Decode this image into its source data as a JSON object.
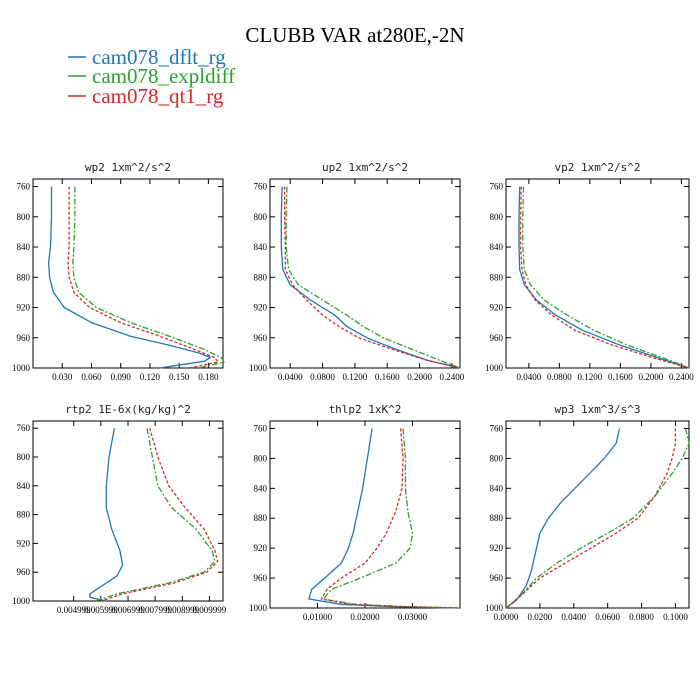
{
  "title": "CLUBB VAR at280E,-2N",
  "legend": [
    {
      "label": "cam078_dflt_rg",
      "color": "#1f77b4",
      "dash": ""
    },
    {
      "label": "cam078_expldiff",
      "color": "#2ca02c",
      "dash": "6,2,2,2"
    },
    {
      "label": "cam078_qt1_rg",
      "color": "#d62728",
      "dash": "3,2"
    }
  ],
  "chart_data": [
    {
      "type": "line",
      "title": "wp2   1xm^2/s^2",
      "xlim": [
        0.0,
        0.195
      ],
      "ylim": [
        1000,
        750
      ],
      "y_ticks": [
        760,
        800,
        840,
        880,
        920,
        960,
        1000
      ],
      "x_ticks": [
        0.03,
        0.06,
        0.09,
        0.12,
        0.15,
        0.18
      ],
      "x_tick_labels": [
        "0.030",
        "0.060",
        "0.090",
        "0.120",
        "0.150",
        "0.180"
      ],
      "series": [
        {
          "name": "cam078_dflt_rg",
          "color": "#1f77b4",
          "dash": "",
          "x": [
            0.019,
            0.019,
            0.018,
            0.016,
            0.017,
            0.021,
            0.032,
            0.06,
            0.1,
            0.14,
            0.17,
            0.182,
            0.176,
            0.13
          ],
          "y": [
            760,
            800,
            840,
            860,
            880,
            900,
            920,
            940,
            958,
            970,
            980,
            986,
            991,
            1000
          ]
        },
        {
          "name": "cam078_expldiff",
          "color": "#2ca02c",
          "dash": "6,2,2,2",
          "x": [
            0.043,
            0.043,
            0.042,
            0.041,
            0.042,
            0.047,
            0.065,
            0.1,
            0.14,
            0.175,
            0.193,
            0.196,
            0.17
          ],
          "y": [
            760,
            800,
            840,
            860,
            880,
            900,
            920,
            940,
            958,
            975,
            986,
            992,
            1000
          ]
        },
        {
          "name": "cam078_qt1_rg",
          "color": "#d62728",
          "dash": "3,2",
          "x": [
            0.037,
            0.037,
            0.037,
            0.036,
            0.037,
            0.042,
            0.058,
            0.09,
            0.13,
            0.165,
            0.186,
            0.19,
            0.16
          ],
          "y": [
            760,
            800,
            840,
            860,
            880,
            900,
            920,
            940,
            958,
            975,
            986,
            992,
            1000
          ]
        }
      ]
    },
    {
      "type": "line",
      "title": "up2   1xm^2/s^2",
      "xlim": [
        0.015,
        0.25
      ],
      "ylim": [
        1000,
        750
      ],
      "y_ticks": [
        760,
        800,
        840,
        880,
        920,
        960,
        1000
      ],
      "x_ticks": [
        0.04,
        0.08,
        0.12,
        0.16,
        0.2,
        0.24
      ],
      "x_tick_labels": [
        "0.0400",
        "0.0800",
        "0.1200",
        "0.1600",
        "0.2000",
        "0.2400"
      ],
      "series": [
        {
          "name": "cam078_dflt_rg",
          "color": "#1f77b4",
          "dash": "",
          "x": [
            0.03,
            0.029,
            0.029,
            0.031,
            0.04,
            0.065,
            0.095,
            0.11,
            0.135,
            0.17,
            0.21,
            0.25
          ],
          "y": [
            760,
            800,
            840,
            870,
            890,
            910,
            930,
            945,
            960,
            975,
            990,
            1000
          ]
        },
        {
          "name": "cam078_expldiff",
          "color": "#2ca02c",
          "dash": "6,2,2,2",
          "x": [
            0.036,
            0.035,
            0.035,
            0.038,
            0.05,
            0.08,
            0.11,
            0.13,
            0.155,
            0.19,
            0.225,
            0.25
          ],
          "y": [
            760,
            800,
            840,
            870,
            890,
            910,
            930,
            945,
            960,
            975,
            990,
            1000
          ]
        },
        {
          "name": "cam078_qt1_rg",
          "color": "#d62728",
          "dash": "3,2",
          "x": [
            0.033,
            0.033,
            0.034,
            0.034,
            0.043,
            0.06,
            0.08,
            0.1,
            0.125,
            0.165,
            0.21,
            0.25
          ],
          "y": [
            760,
            800,
            840,
            870,
            890,
            910,
            930,
            945,
            960,
            975,
            990,
            1000
          ]
        }
      ]
    },
    {
      "type": "line",
      "title": "vp2   1xm^2/s^2",
      "xlim": [
        0.01,
        0.25
      ],
      "ylim": [
        1000,
        750
      ],
      "y_ticks": [
        760,
        800,
        840,
        880,
        920,
        960,
        1000
      ],
      "x_ticks": [
        0.04,
        0.08,
        0.12,
        0.16,
        0.2,
        0.24
      ],
      "x_tick_labels": [
        "0.0400",
        "0.0800",
        "0.1200",
        "0.1600",
        "0.2000",
        "0.2400"
      ],
      "series": [
        {
          "name": "cam078_dflt_rg",
          "color": "#1f77b4",
          "dash": "",
          "x": [
            0.028,
            0.027,
            0.027,
            0.028,
            0.034,
            0.05,
            0.075,
            0.11,
            0.16,
            0.22,
            0.25
          ],
          "y": [
            760,
            800,
            840,
            870,
            890,
            910,
            930,
            950,
            970,
            990,
            1000
          ]
        },
        {
          "name": "cam078_expldiff",
          "color": "#2ca02c",
          "dash": "6,2,2,2",
          "x": [
            0.033,
            0.032,
            0.032,
            0.034,
            0.042,
            0.06,
            0.09,
            0.125,
            0.17,
            0.225,
            0.25
          ],
          "y": [
            760,
            800,
            840,
            870,
            890,
            910,
            930,
            950,
            970,
            990,
            1000
          ]
        },
        {
          "name": "cam078_qt1_rg",
          "color": "#d62728",
          "dash": "3,2",
          "x": [
            0.03,
            0.029,
            0.029,
            0.031,
            0.036,
            0.048,
            0.07,
            0.1,
            0.15,
            0.215,
            0.25
          ],
          "y": [
            760,
            800,
            840,
            870,
            890,
            910,
            930,
            950,
            970,
            990,
            1000
          ]
        }
      ]
    },
    {
      "type": "line",
      "title": "rtp2   1E-6x(kg/kg)^2",
      "xlim": [
        0.0035,
        0.0105
      ],
      "ylim": [
        1000,
        750
      ],
      "y_ticks": [
        760,
        800,
        840,
        880,
        920,
        960,
        1000
      ],
      "x_ticks": [
        0.005,
        0.006,
        0.007,
        0.008,
        0.009,
        0.01
      ],
      "x_tick_labels": [
        "0.004999",
        "0.005999",
        "0.006999",
        "0.007999",
        "0.008999",
        "0.009999"
      ],
      "series": [
        {
          "name": "cam078_dflt_rg",
          "color": "#1f77b4",
          "dash": "",
          "x": [
            0.0065,
            0.0063,
            0.0062,
            0.0062,
            0.0064,
            0.0067,
            0.0068,
            0.0066,
            0.006,
            0.0056,
            0.0056,
            0.0062
          ],
          "y": [
            760,
            800,
            840,
            870,
            900,
            930,
            950,
            965,
            980,
            990,
            995,
            1000
          ]
        },
        {
          "name": "cam078_expldiff",
          "color": "#2ca02c",
          "dash": "6,2,2,2",
          "x": [
            0.0077,
            0.0079,
            0.0081,
            0.0086,
            0.0095,
            0.0101,
            0.0102,
            0.0098,
            0.0085,
            0.0066,
            0.0058
          ],
          "y": [
            760,
            800,
            840,
            870,
            900,
            930,
            945,
            960,
            975,
            990,
            1000
          ]
        },
        {
          "name": "cam078_qt1_rg",
          "color": "#d62728",
          "dash": "3,2",
          "x": [
            0.0078,
            0.0081,
            0.0085,
            0.0091,
            0.0098,
            0.0102,
            0.0103,
            0.0099,
            0.0087,
            0.0068,
            0.006
          ],
          "y": [
            760,
            800,
            840,
            870,
            900,
            930,
            945,
            960,
            975,
            990,
            1000
          ]
        }
      ]
    },
    {
      "type": "line",
      "title": "thlp2   1xK^2",
      "xlim": [
        0.0,
        0.04
      ],
      "ylim": [
        1000,
        750
      ],
      "y_ticks": [
        760,
        800,
        840,
        880,
        920,
        960,
        1000
      ],
      "x_ticks": [
        0.01,
        0.02,
        0.03
      ],
      "x_tick_labels": [
        "0.01000",
        "0.02000",
        "0.03000"
      ],
      "series": [
        {
          "name": "cam078_dflt_rg",
          "color": "#1f77b4",
          "dash": "",
          "x": [
            0.0215,
            0.0205,
            0.0195,
            0.0185,
            0.0175,
            0.0165,
            0.015,
            0.0115,
            0.0088,
            0.0082,
            0.015,
            0.025,
            0.04
          ],
          "y": [
            760,
            800,
            840,
            870,
            900,
            920,
            940,
            960,
            975,
            988,
            995,
            998,
            1000
          ]
        },
        {
          "name": "cam078_expldiff",
          "color": "#2ca02c",
          "dash": "6,2,2,2",
          "x": [
            0.028,
            0.0285,
            0.0285,
            0.029,
            0.03,
            0.0295,
            0.0265,
            0.019,
            0.013,
            0.0112,
            0.018,
            0.028,
            0.04
          ],
          "y": [
            760,
            800,
            840,
            870,
            900,
            920,
            940,
            960,
            975,
            988,
            995,
            998,
            1000
          ]
        },
        {
          "name": "cam078_qt1_rg",
          "color": "#d62728",
          "dash": "3,2",
          "x": [
            0.0275,
            0.028,
            0.0278,
            0.0265,
            0.0245,
            0.0225,
            0.02,
            0.015,
            0.012,
            0.0108,
            0.017,
            0.027,
            0.04
          ],
          "y": [
            760,
            800,
            840,
            870,
            900,
            920,
            940,
            960,
            975,
            988,
            995,
            998,
            1000
          ]
        }
      ]
    },
    {
      "type": "line",
      "title": "wp3   1xm^3/s^3",
      "xlim": [
        0.0,
        0.108
      ],
      "ylim": [
        1000,
        750
      ],
      "y_ticks": [
        760,
        800,
        840,
        880,
        920,
        960,
        1000
      ],
      "x_ticks": [
        0.0,
        0.02,
        0.04,
        0.06,
        0.08,
        0.1
      ],
      "x_tick_labels": [
        "0.0000",
        "0.0200",
        "0.0400",
        "0.0600",
        "0.0800",
        "0.1000"
      ],
      "series": [
        {
          "name": "cam078_dflt_rg",
          "color": "#1f77b4",
          "dash": "",
          "x": [
            0.067,
            0.065,
            0.058,
            0.045,
            0.032,
            0.025,
            0.02,
            0.018,
            0.015,
            0.012,
            0.006,
            0.0
          ],
          "y": [
            760,
            780,
            800,
            830,
            860,
            880,
            900,
            920,
            950,
            970,
            990,
            1000
          ]
        },
        {
          "name": "cam078_expldiff",
          "color": "#2ca02c",
          "dash": "6,2,2,2",
          "x": [
            0.106,
            0.108,
            0.104,
            0.098,
            0.088,
            0.075,
            0.06,
            0.044,
            0.03,
            0.018,
            0.008,
            0.0
          ],
          "y": [
            760,
            780,
            800,
            820,
            850,
            880,
            900,
            920,
            940,
            960,
            985,
            1000
          ]
        },
        {
          "name": "cam078_qt1_rg",
          "color": "#d62728",
          "dash": "3,2",
          "x": [
            0.1,
            0.1,
            0.098,
            0.095,
            0.088,
            0.078,
            0.065,
            0.05,
            0.035,
            0.02,
            0.008,
            0.0
          ],
          "y": [
            760,
            780,
            800,
            820,
            850,
            880,
            900,
            920,
            940,
            960,
            985,
            1000
          ]
        }
      ]
    }
  ]
}
